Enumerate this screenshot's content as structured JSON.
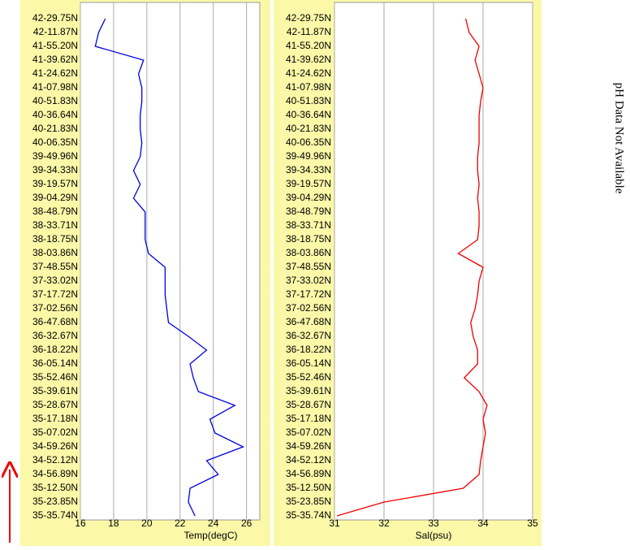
{
  "chart_data": [
    {
      "type": "line",
      "xlabel": "Temp(degC)",
      "color": "#0000e0",
      "categories": [
        "42-29.75N",
        "42-11.87N",
        "41-55.20N",
        "41-39.62N",
        "41-24.62N",
        "41-07.98N",
        "40-51.83N",
        "40-36.64N",
        "40-21.83N",
        "40-06.35N",
        "39-49.96N",
        "39-34.33N",
        "39-19.57N",
        "39-04.29N",
        "38-48.79N",
        "38-33.71N",
        "38-18.75N",
        "38-03.86N",
        "37-48.55N",
        "37-33.02N",
        "37-17.72N",
        "37-02.56N",
        "36-47.68N",
        "36-32.67N",
        "36-18.22N",
        "36-05.14N",
        "35-52.46N",
        "35-39.61N",
        "35-28.67N",
        "35-17.18N",
        "35-07.02N",
        "34-59.26N",
        "34-52.12N",
        "34-56.89N",
        "35-12.50N",
        "35-23.85N",
        "35-35.74N"
      ],
      "values": [
        17.5,
        17.1,
        16.9,
        19.8,
        19.5,
        19.7,
        19.7,
        19.6,
        19.6,
        19.7,
        19.6,
        19.2,
        19.6,
        19.2,
        19.9,
        19.9,
        19.9,
        20.1,
        21.1,
        21.1,
        21.1,
        21.2,
        21.3,
        22.5,
        23.6,
        22.6,
        22.8,
        23.1,
        25.3,
        23.8,
        24.1,
        25.8,
        23.6,
        24.3,
        22.6,
        22.5,
        22.9
      ],
      "xlim": [
        16,
        26.8
      ],
      "xticks": [
        16,
        18,
        20,
        22,
        24,
        26
      ],
      "grid": true
    },
    {
      "type": "line",
      "xlabel": "Sal(psu)",
      "color": "#ee0000",
      "categories": [
        "42-29.75N",
        "42-11.87N",
        "41-55.20N",
        "41-39.62N",
        "41-24.62N",
        "41-07.98N",
        "40-51.83N",
        "40-36.64N",
        "40-21.83N",
        "40-06.35N",
        "39-49.96N",
        "39-34.33N",
        "39-19.57N",
        "39-04.29N",
        "38-48.79N",
        "38-33.71N",
        "38-18.75N",
        "38-03.86N",
        "37-48.55N",
        "37-33.02N",
        "37-17.72N",
        "37-02.56N",
        "36-47.68N",
        "36-32.67N",
        "36-18.22N",
        "36-05.14N",
        "35-52.46N",
        "35-39.61N",
        "35-28.67N",
        "35-17.18N",
        "35-07.02N",
        "34-59.26N",
        "34-52.12N",
        "34-56.89N",
        "35-12.50N",
        "35-23.85N",
        "35-35.74N"
      ],
      "values": [
        33.65,
        33.72,
        33.92,
        33.84,
        33.92,
        34.0,
        33.95,
        33.92,
        33.92,
        33.92,
        33.89,
        33.89,
        33.92,
        33.89,
        33.92,
        33.92,
        33.89,
        33.5,
        34.0,
        33.92,
        33.89,
        33.84,
        33.75,
        33.8,
        33.89,
        33.89,
        33.62,
        33.92,
        34.08,
        34.0,
        34.05,
        34.0,
        33.95,
        33.92,
        33.6,
        32.0,
        31.05
      ],
      "xlim": [
        31,
        35
      ],
      "xticks": [
        31,
        32,
        33,
        34,
        35
      ],
      "grid": true
    }
  ],
  "annotation": "pH Data Not Available"
}
